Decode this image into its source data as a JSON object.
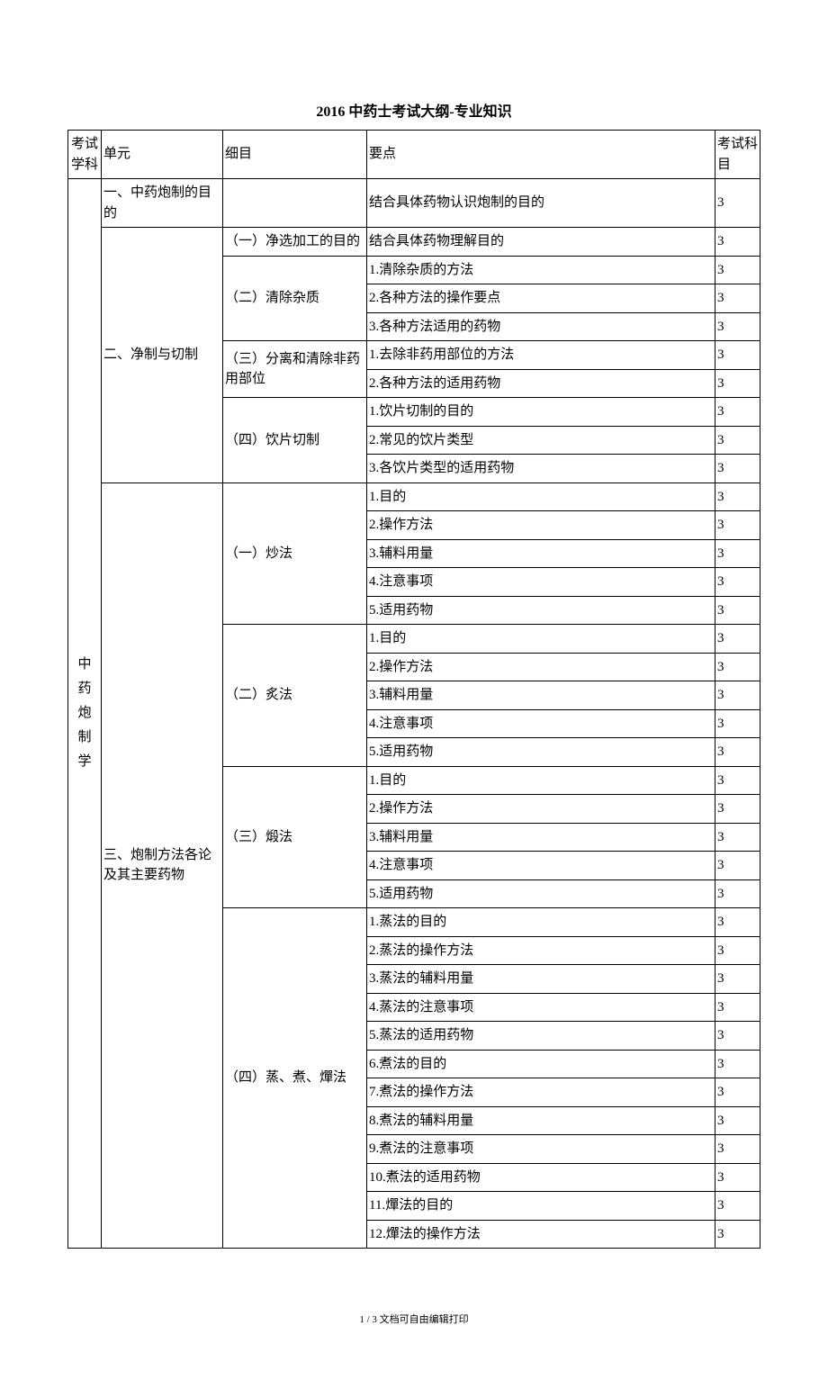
{
  "title": "2016 中药士考试大纲-专业知识",
  "footer": "1 / 3 文档可自由编辑打印",
  "headers": {
    "col1": "考试学科",
    "col2": "单元",
    "col3": "细目",
    "col4": "要点",
    "col5": "考试科目"
  },
  "subject_vertical": "中药炮制学",
  "units": {
    "u1": "一、中药炮制的目的",
    "u2": "二、净制与切制",
    "u3": "三、炮制方法各论及其主要药物"
  },
  "sections": {
    "s2_1": "（一）净选加工的目的",
    "s2_2": "（二）清除杂质",
    "s2_3": "（三）分离和清除非药用部位",
    "s2_4": "（四）饮片切制",
    "s3_1": "（一）炒法",
    "s3_2": "（二）炙法",
    "s3_3": "（三）煅法",
    "s3_4": "（四）蒸、煮、燀法"
  },
  "points": {
    "p1_1": "结合具体药物认识炮制的目的",
    "p2_1_1": "结合具体药物理解目的",
    "p2_2_1": "1.清除杂质的方法",
    "p2_2_2": "2.各种方法的操作要点",
    "p2_2_3": "3.各种方法适用的药物",
    "p2_3_1": "1.去除非药用部位的方法",
    "p2_3_2": "2.各种方法的适用药物",
    "p2_4_1": "1.饮片切制的目的",
    "p2_4_2": "2.常见的饮片类型",
    "p2_4_3": "3.各饮片类型的适用药物",
    "p3_1_1": "1.目的",
    "p3_1_2": "2.操作方法",
    "p3_1_3": "3.辅料用量",
    "p3_1_4": "4.注意事项",
    "p3_1_5": "5.适用药物",
    "p3_2_1": "1.目的",
    "p3_2_2": "2.操作方法",
    "p3_2_3": "3.辅料用量",
    "p3_2_4": "4.注意事项",
    "p3_2_5": "5.适用药物",
    "p3_3_1": "1.目的",
    "p3_3_2": "2.操作方法",
    "p3_3_3": "3.辅料用量",
    "p3_3_4": "4.注意事项",
    "p3_3_5": "5.适用药物",
    "p3_4_1": "1.蒸法的目的",
    "p3_4_2": "2.蒸法的操作方法",
    "p3_4_3": "3.蒸法的辅料用量",
    "p3_4_4": "4.蒸法的注意事项",
    "p3_4_5": "5.蒸法的适用药物",
    "p3_4_6": "6.煮法的目的",
    "p3_4_7": "7.煮法的操作方法",
    "p3_4_8": "8.煮法的辅料用量",
    "p3_4_9": "9.煮法的注意事项",
    "p3_4_10": "10.煮法的适用药物",
    "p3_4_11": "11.燀法的目的",
    "p3_4_12": "12.燀法的操作方法"
  },
  "score": "3"
}
